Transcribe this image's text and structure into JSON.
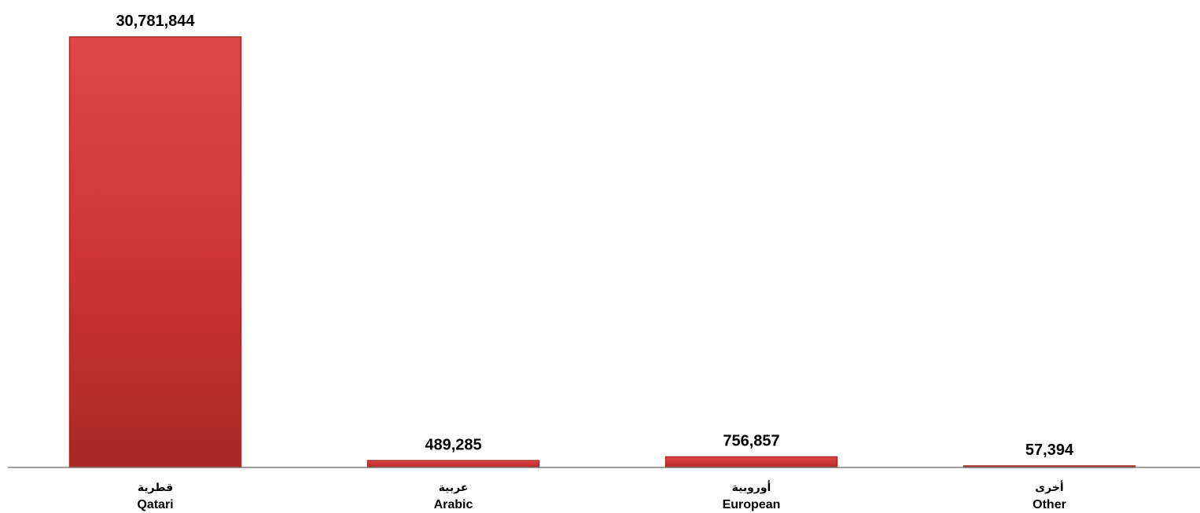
{
  "chart_data": {
    "type": "bar",
    "categories": [
      {
        "ar": "قطرية",
        "en": "Qatari"
      },
      {
        "ar": "عربية",
        "en": "Arabic"
      },
      {
        "ar": "أوروبية",
        "en": "European"
      },
      {
        "ar": "أخرى",
        "en": "Other"
      }
    ],
    "values": [
      30781844,
      489285,
      756857,
      57394
    ],
    "value_labels": [
      "30,781,844",
      "489,285",
      "756,857",
      "57,394"
    ],
    "title": "",
    "xlabel": "",
    "ylabel": "",
    "ylim": [
      0,
      30781844
    ],
    "grid": false,
    "legend": "none",
    "bar_color": "#cc3333",
    "bar_color_light": "#e04848",
    "bar_color_dark": "#a82828",
    "axis_color": "#808080"
  }
}
